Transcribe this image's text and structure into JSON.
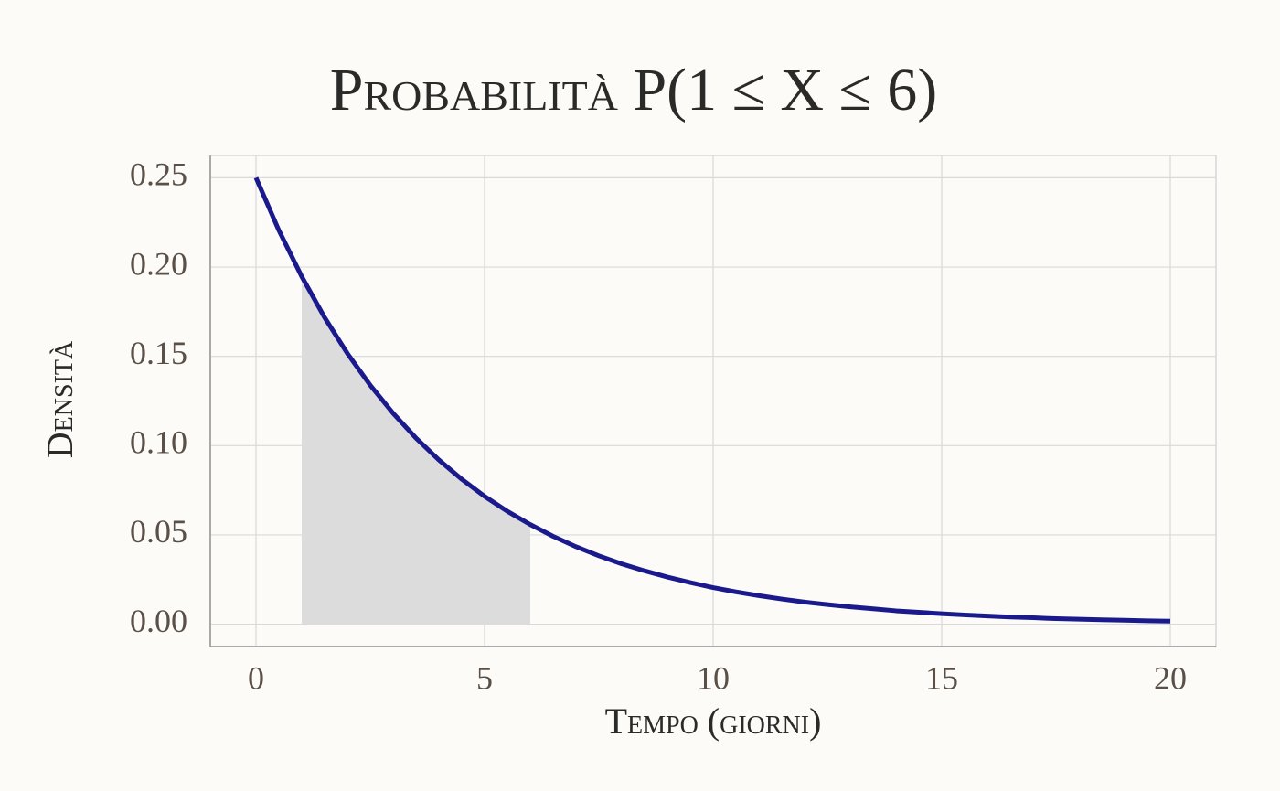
{
  "chart_data": {
    "type": "line",
    "title": "Probabilità P(1 ≤ X ≤ 6)",
    "x_label": "Tempo (giorni)",
    "y_label": "Densità",
    "xlim": [
      -1,
      21
    ],
    "ylim": [
      -0.0125,
      0.2625
    ],
    "xticks": [
      0,
      5,
      10,
      15,
      20
    ],
    "yticks": [
      {
        "value": 0,
        "label": "0.00"
      },
      0.05,
      {
        "value": 0.1,
        "label": "0.10"
      },
      0.15,
      {
        "value": 0.2,
        "label": "0.20"
      },
      0.25
    ],
    "grid": true,
    "area": {
      "color": "#dcdcdc",
      "x": [
        1,
        1.5,
        2,
        2.5,
        3,
        3.5,
        4,
        4.5,
        5,
        5.5,
        6
      ],
      "values": [
        0.1947,
        0.1718,
        0.1516,
        0.1338,
        0.1181,
        0.1042,
        0.092,
        0.0812,
        0.0716,
        0.0632,
        0.0558
      ]
    },
    "series": [
      {
        "color": "#1a1a8c",
        "x": [
          0,
          0.5,
          1,
          1.5,
          2,
          2.5,
          3,
          3.5,
          4,
          4.5,
          5,
          5.5,
          6,
          6.5,
          7,
          7.5,
          8,
          8.5,
          9,
          9.5,
          10,
          10.5,
          11,
          11.5,
          12,
          12.5,
          13,
          13.5,
          14,
          14.5,
          15,
          15.5,
          16,
          16.5,
          17,
          17.5,
          18,
          18.5,
          19,
          19.5,
          20
        ],
        "values": [
          0.25,
          0.2206,
          0.1947,
          0.1718,
          0.1516,
          0.1338,
          0.1181,
          0.1042,
          0.092,
          0.0812,
          0.0716,
          0.0632,
          0.0558,
          0.0492,
          0.0434,
          0.0383,
          0.0338,
          0.0299,
          0.0264,
          0.0233,
          0.0205,
          0.0181,
          0.016,
          0.0141,
          0.0124,
          0.011,
          0.0097,
          0.0086,
          0.0075,
          0.0067,
          0.0059,
          0.0052,
          0.0046,
          0.004,
          0.0036,
          0.0031,
          0.0028,
          0.0025,
          0.0022,
          0.0019,
          0.0017
        ]
      }
    ]
  }
}
